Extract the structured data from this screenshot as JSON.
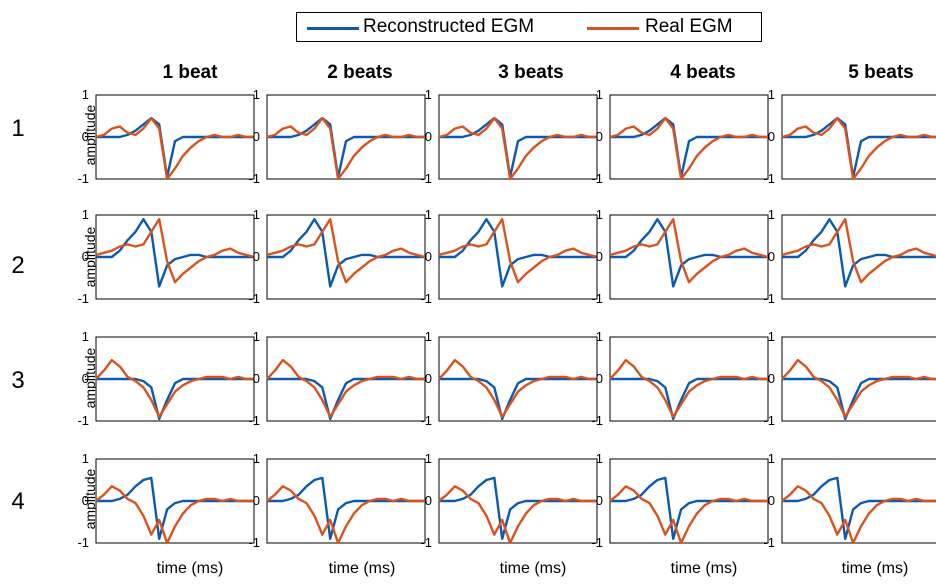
{
  "legend": {
    "items": [
      {
        "label": "Reconstructed EGM",
        "color": "#0b5ab0"
      },
      {
        "label": "Real EGM",
        "color": "#d9531e"
      }
    ]
  },
  "columns": [
    "1 beat",
    "2 beats",
    "3 beats",
    "4 beats",
    "5 beats"
  ],
  "rows": [
    "1",
    "2",
    "3",
    "4"
  ],
  "ylabel": "amplitude",
  "xlabel": "time (ms)",
  "chart_data": {
    "type": "line",
    "layout": "small multiples: 4 rows x 5 columns",
    "xlabel": "time (ms)",
    "ylabel": "amplitude",
    "ylim": [
      -1,
      1
    ],
    "yticks": [
      -1,
      0,
      1
    ],
    "xticks": [],
    "grid": false,
    "legend_position": "top-center",
    "series_names": [
      "Reconstructed EGM",
      "Real EGM"
    ],
    "series_colors": [
      "#0b5ab0",
      "#d9531e"
    ],
    "waveforms": {
      "x": [
        0,
        5,
        10,
        15,
        20,
        25,
        30,
        35,
        40,
        45,
        50,
        55,
        60,
        65,
        70,
        75,
        80,
        85,
        90,
        95,
        100
      ],
      "row1": {
        "real": [
          0.0,
          0.05,
          0.2,
          0.25,
          0.1,
          0.05,
          0.2,
          0.45,
          0.2,
          -1.0,
          -0.75,
          -0.45,
          -0.25,
          -0.1,
          0.0,
          0.05,
          0.0,
          0.0,
          0.05,
          0.0,
          0.0
        ],
        "reconstructed": [
          0.0,
          0.0,
          0.0,
          0.0,
          0.05,
          0.15,
          0.3,
          0.45,
          0.3,
          -0.95,
          -0.1,
          0.0,
          0.0,
          0.0,
          0.0,
          0.0,
          0.0,
          0.0,
          0.0,
          0.0,
          0.0
        ]
      },
      "row2": {
        "real": [
          0.05,
          0.1,
          0.15,
          0.25,
          0.3,
          0.25,
          0.3,
          0.6,
          0.9,
          -0.1,
          -0.6,
          -0.4,
          -0.25,
          -0.1,
          0.0,
          0.05,
          0.15,
          0.2,
          0.1,
          0.05,
          0.0
        ],
        "reconstructed": [
          0.0,
          0.0,
          0.0,
          0.15,
          0.4,
          0.6,
          0.9,
          0.6,
          -0.7,
          -0.2,
          -0.05,
          0.0,
          0.05,
          0.05,
          0.0,
          0.0,
          0.0,
          0.0,
          0.0,
          0.0,
          0.0
        ]
      },
      "row3": {
        "real": [
          0.0,
          0.2,
          0.45,
          0.3,
          0.05,
          -0.05,
          -0.2,
          -0.5,
          -0.9,
          -0.6,
          -0.3,
          -0.15,
          -0.05,
          0.0,
          0.05,
          0.05,
          0.05,
          0.0,
          0.05,
          0.0,
          0.0
        ],
        "reconstructed": [
          0.0,
          0.0,
          0.0,
          0.0,
          0.0,
          0.0,
          -0.05,
          -0.2,
          -0.95,
          -0.5,
          -0.1,
          0.0,
          0.0,
          0.0,
          0.0,
          0.0,
          0.0,
          0.0,
          0.0,
          0.0,
          0.0
        ]
      },
      "row4": {
        "real": [
          0.0,
          0.15,
          0.35,
          0.25,
          0.05,
          -0.05,
          -0.35,
          -0.8,
          -0.45,
          -1.0,
          -0.6,
          -0.3,
          -0.1,
          0.0,
          0.05,
          0.05,
          0.0,
          0.05,
          0.0,
          0.0,
          0.0
        ],
        "reconstructed": [
          0.0,
          0.0,
          0.0,
          0.05,
          0.15,
          0.35,
          0.5,
          0.55,
          -0.9,
          -0.2,
          -0.05,
          0.0,
          0.0,
          0.0,
          0.0,
          0.0,
          0.0,
          0.0,
          0.0,
          0.0,
          0.0
        ]
      }
    }
  }
}
